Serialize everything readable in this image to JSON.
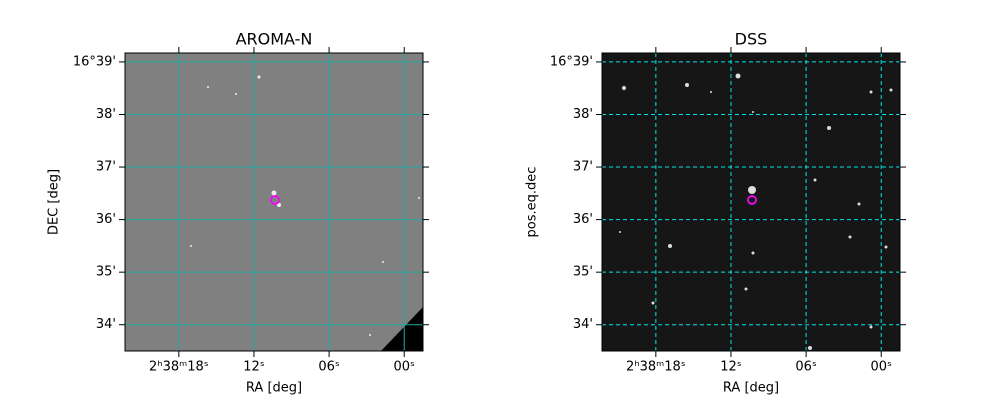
{
  "chart_data": [
    {
      "type": "image",
      "title": "AROMA-N",
      "xlabel": "RA [deg]",
      "ylabel": "DEC [deg]",
      "xlim": [
        22.3,
        -1.5
      ],
      "ylim": [
        33.5,
        39.17
      ],
      "xticks": [
        {
          "value": 18,
          "label": "2ʰ38ᵐ18ˢ"
        },
        {
          "value": 12,
          "label": "12ˢ"
        },
        {
          "value": 6,
          "label": "06ˢ"
        },
        {
          "value": 0,
          "label": "00ˢ"
        }
      ],
      "yticks": [
        {
          "value": 34,
          "label": "34'"
        },
        {
          "value": 35,
          "label": "35'"
        },
        {
          "value": 36,
          "label": "36'"
        },
        {
          "value": 37,
          "label": "37'"
        },
        {
          "value": 38,
          "label": "38'"
        },
        {
          "value": 39,
          "label": "16°39'"
        }
      ],
      "grid": true,
      "grid_style": "solid",
      "grid_color": "#1fa8a0",
      "background": "#808080"
    },
    {
      "type": "image",
      "title": "DSS",
      "xlabel": "RA [deg]",
      "ylabel": "pos.eq.dec",
      "xlim": [
        22.3,
        -1.5
      ],
      "ylim": [
        33.5,
        39.17
      ],
      "xticks": [
        {
          "value": 18,
          "label": "2ʰ38ᵐ18ˢ"
        },
        {
          "value": 12,
          "label": "12ˢ"
        },
        {
          "value": 6,
          "label": "06ˢ"
        },
        {
          "value": 0,
          "label": "00ˢ"
        }
      ],
      "yticks": [
        {
          "value": 34,
          "label": "34'"
        },
        {
          "value": 35,
          "label": "35'"
        },
        {
          "value": 36,
          "label": "36'"
        },
        {
          "value": 37,
          "label": "37'"
        },
        {
          "value": 38,
          "label": "38'"
        },
        {
          "value": 39,
          "label": "16°39'"
        }
      ],
      "grid": true,
      "grid_style": "dashed",
      "grid_color": "#00e5e5",
      "background": "#161616"
    }
  ]
}
